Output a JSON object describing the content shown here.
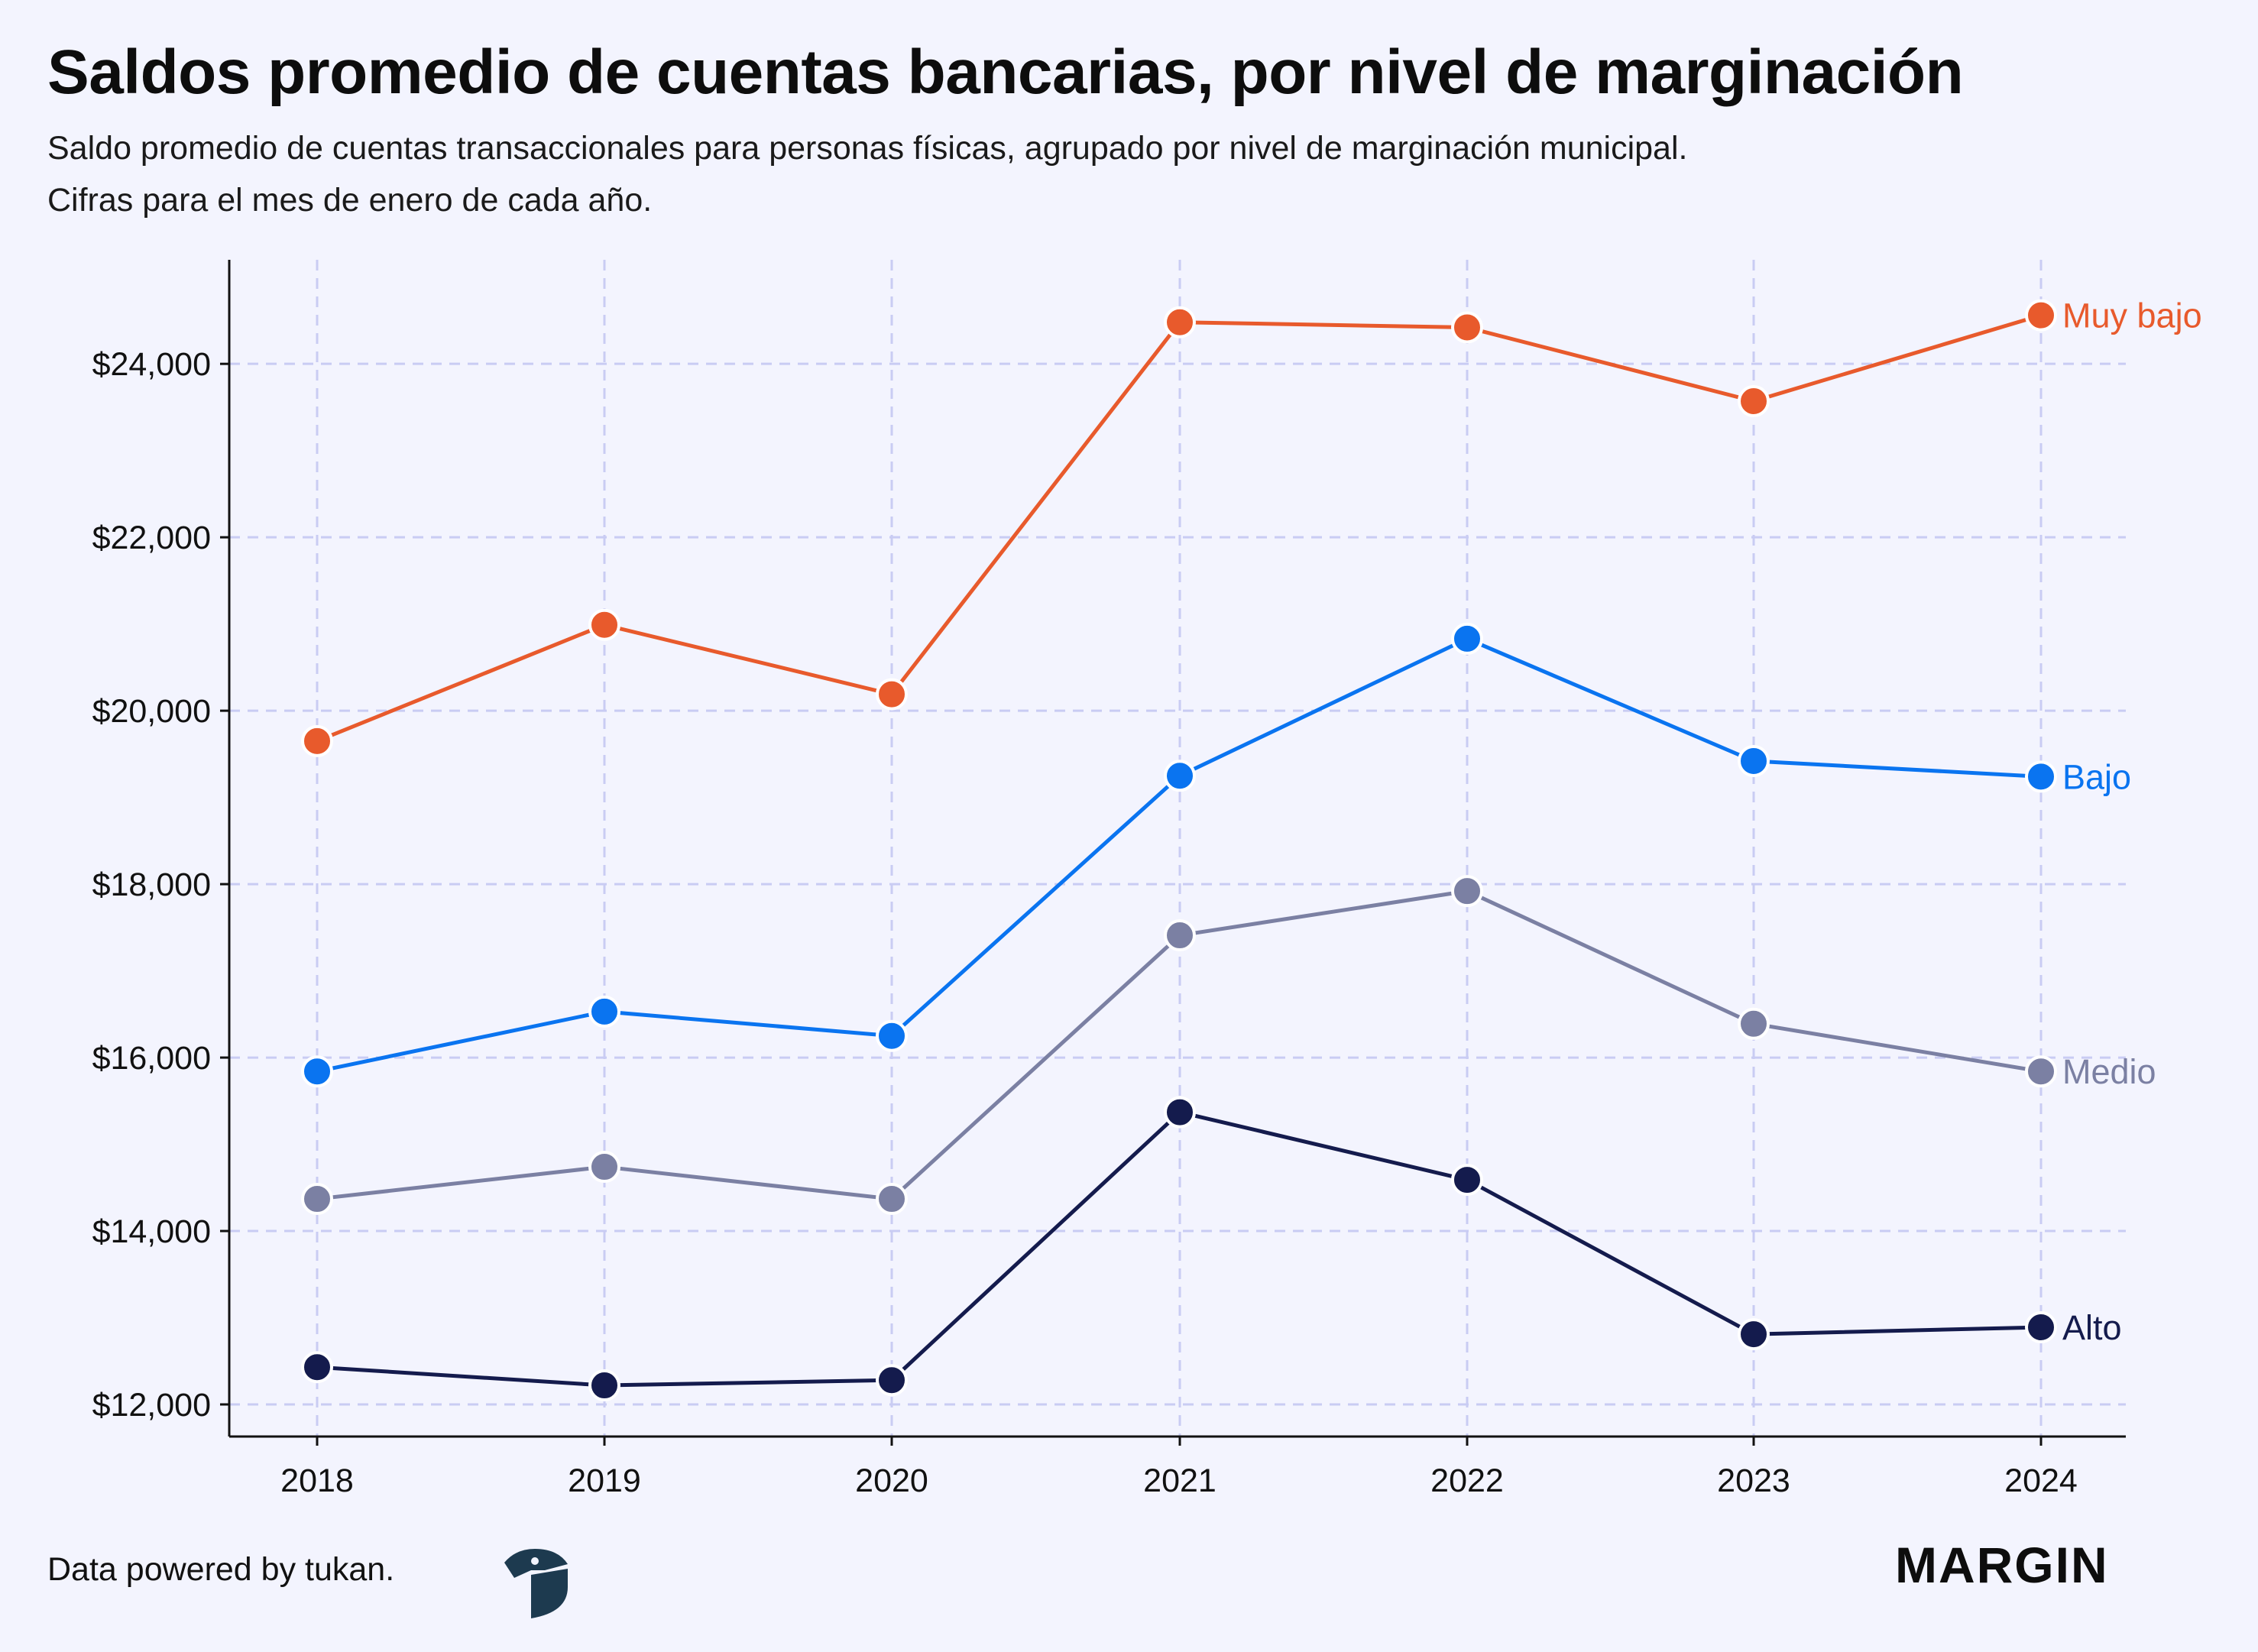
{
  "header": {
    "title": "Saldos promedio de cuentas bancarias, por nivel de marginación",
    "subtitle_lines": [
      "Saldo promedio de cuentas transaccionales para personas físicas, agrupado por nivel de marginación municipal.",
      "Cifras para el mes de enero de cada año."
    ]
  },
  "footer": {
    "credit": "Data powered by tukan.",
    "brand": "MARGIN",
    "tukan_logo_icon": "tukan-logo-icon"
  },
  "chart_data": {
    "type": "line",
    "title": "Saldos promedio de cuentas bancarias, por nivel de marginación",
    "x": [
      2018,
      2019,
      2020,
      2021,
      2022,
      2023,
      2024
    ],
    "x_tick_labels": [
      "2018",
      "2019",
      "2020",
      "2021",
      "2022",
      "2023",
      "2024"
    ],
    "y_ticks": [
      12000,
      14000,
      16000,
      18000,
      20000,
      22000,
      24000
    ],
    "y_tick_labels": [
      "$12,000",
      "$14,000",
      "$16,000",
      "$18,000",
      "$20,000",
      "$22,000",
      "$24,000"
    ],
    "ylim": [
      11630,
      25200
    ],
    "grid": true,
    "legend": "direct labels at line ends",
    "series": [
      {
        "name": "Muy bajo",
        "color": "#e85a2c",
        "values": [
          19650,
          20990,
          20190,
          24480,
          24420,
          23570,
          24560
        ]
      },
      {
        "name": "Bajo",
        "color": "#0a74f0",
        "values": [
          15840,
          16530,
          16250,
          19250,
          20830,
          19420,
          19240
        ]
      },
      {
        "name": "Medio",
        "color": "#7b80a3",
        "values": [
          14370,
          14740,
          14370,
          17410,
          17920,
          16390,
          15840
        ]
      },
      {
        "name": "Alto",
        "color": "#141b4d",
        "values": [
          12430,
          12220,
          12280,
          15370,
          14590,
          12810,
          12890
        ]
      }
    ]
  }
}
